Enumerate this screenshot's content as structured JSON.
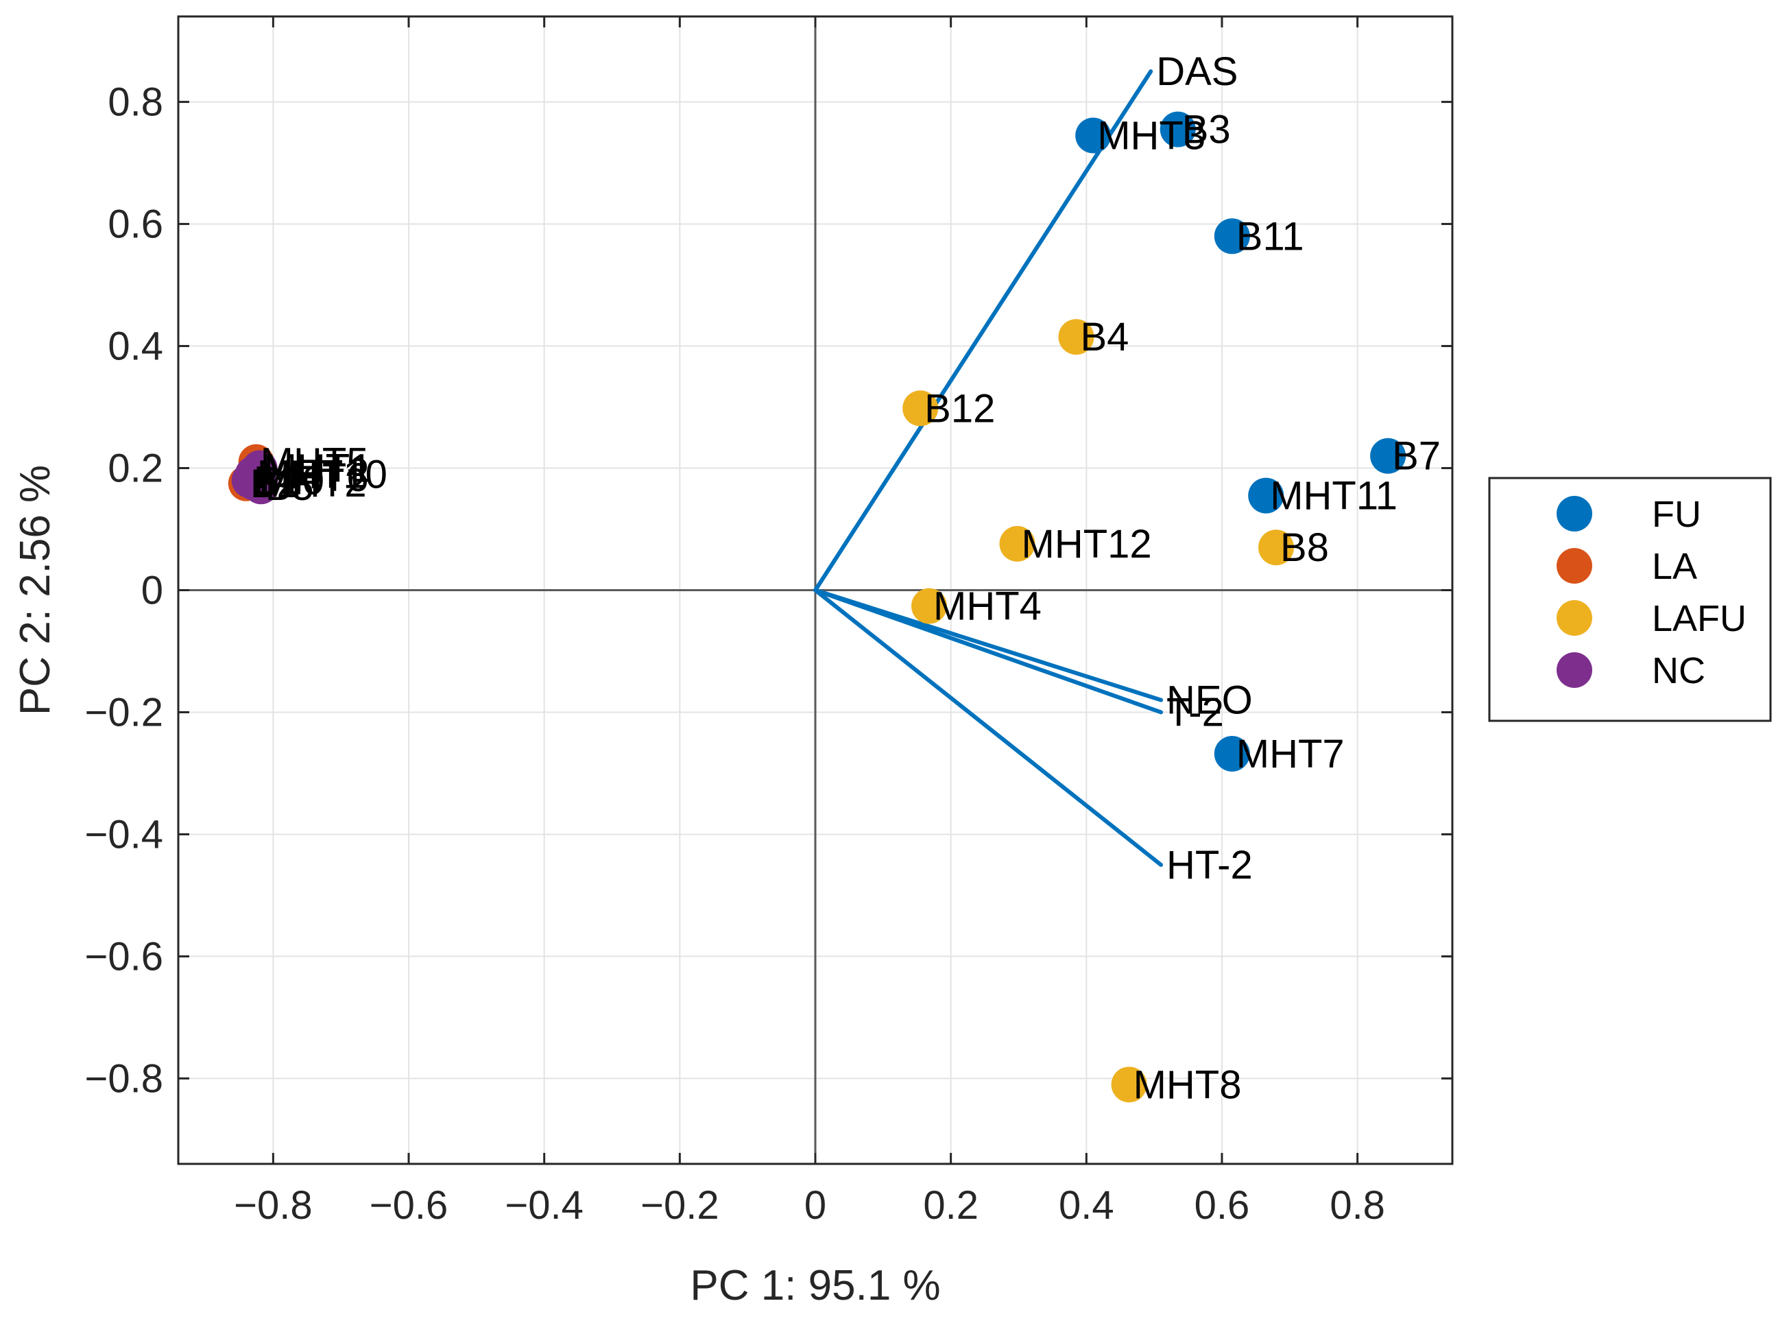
{
  "chart_data": {
    "type": "scatter",
    "subtype": "pca-biplot",
    "title": "",
    "xlabel": "PC 1: 95.1 %",
    "ylabel": "PC 2: 2.56 %",
    "xlim": [
      -0.94,
      0.94
    ],
    "ylim": [
      -0.94,
      0.94
    ],
    "xticks": [
      -0.8,
      -0.6,
      -0.4,
      -0.2,
      0,
      0.2,
      0.4,
      0.6,
      0.8
    ],
    "yticks": [
      -0.8,
      -0.6,
      -0.4,
      -0.2,
      0,
      0.2,
      0.4,
      0.6,
      0.8
    ],
    "xtick_labels": [
      "−0.8",
      "−0.6",
      "−0.4",
      "−0.2",
      "0",
      "0.2",
      "0.4",
      "0.6",
      "0.8"
    ],
    "ytick_labels": [
      "−0.8",
      "−0.6",
      "−0.4",
      "−0.2",
      "0",
      "0.2",
      "0.4",
      "0.6",
      "0.8"
    ],
    "grid": true,
    "legend_position": "right",
    "loadings": [
      {
        "label": "DAS",
        "x": 0.495,
        "y": 0.85
      },
      {
        "label": "NEO",
        "x": 0.51,
        "y": -0.18
      },
      {
        "label": "T-2",
        "x": 0.51,
        "y": -0.2
      },
      {
        "label": "HT-2",
        "x": 0.51,
        "y": -0.45
      }
    ],
    "series": [
      {
        "name": "FU",
        "color": "#0072BD",
        "points": [
          {
            "label": "MHT3",
            "x": 0.41,
            "y": 0.745
          },
          {
            "label": "B3",
            "x": 0.535,
            "y": 0.755
          },
          {
            "label": "B11",
            "x": 0.615,
            "y": 0.58
          },
          {
            "label": "B7",
            "x": 0.845,
            "y": 0.22
          },
          {
            "label": "MHT11",
            "x": 0.665,
            "y": 0.155
          },
          {
            "label": "MHT7",
            "x": 0.615,
            "y": -0.268
          }
        ]
      },
      {
        "name": "LA",
        "color": "#D95319",
        "points": [
          {
            "label": "B2",
            "x": -0.84,
            "y": 0.175
          },
          {
            "label": "MHT5",
            "x": -0.825,
            "y": 0.21
          }
        ]
      },
      {
        "name": "LAFU",
        "color": "#EDB120",
        "points": [
          {
            "label": "B4",
            "x": 0.385,
            "y": 0.415
          },
          {
            "label": "B12",
            "x": 0.155,
            "y": 0.298
          },
          {
            "label": "MHT12",
            "x": 0.298,
            "y": 0.076
          },
          {
            "label": "B8",
            "x": 0.68,
            "y": 0.07
          },
          {
            "label": "MHT4",
            "x": 0.168,
            "y": -0.026
          },
          {
            "label": "MHT8",
            "x": 0.463,
            "y": -0.81
          }
        ]
      },
      {
        "name": "NC",
        "color": "#7E2F8E",
        "points": [
          {
            "label": "MHT10",
            "x": -0.83,
            "y": 0.19
          },
          {
            "label": "B5",
            "x": -0.818,
            "y": 0.17
          },
          {
            "label": "MHT6",
            "x": -0.825,
            "y": 0.185
          },
          {
            "label": "B10",
            "x": -0.835,
            "y": 0.18
          },
          {
            "label": "MHT1",
            "x": -0.82,
            "y": 0.2
          },
          {
            "label": "MHT2",
            "x": -0.828,
            "y": 0.176
          }
        ]
      }
    ]
  }
}
